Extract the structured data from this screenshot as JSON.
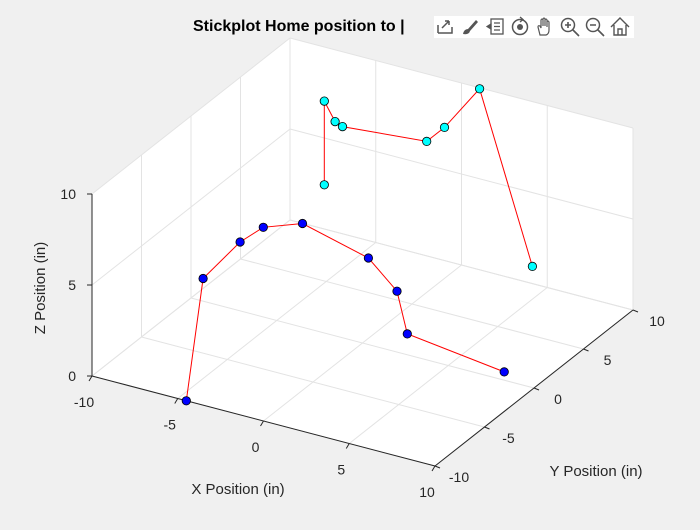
{
  "figure": {
    "background": "#f0f0f0",
    "axes_color": "#ffffff"
  },
  "toolbar": {
    "buttons": [
      {
        "name": "export-icon"
      },
      {
        "name": "brush-icon"
      },
      {
        "name": "datatip-icon"
      },
      {
        "name": "rotate-3d-icon"
      },
      {
        "name": "pan-icon"
      },
      {
        "name": "zoom-in-icon"
      },
      {
        "name": "zoom-out-icon"
      },
      {
        "name": "home-icon"
      }
    ]
  },
  "chart_data": {
    "type": "line",
    "view": "3d",
    "title": "Stickplot Home position to |",
    "xlabel": "X Position (in)",
    "ylabel": "Y Position (in)",
    "zlabel": "Z Position (in)",
    "xlim": [
      -10,
      10
    ],
    "ylim": [
      -10,
      10
    ],
    "zlim": [
      0,
      10
    ],
    "xticks": [
      "-10",
      "-5",
      "0",
      "5",
      "10"
    ],
    "yticks": [
      "-10",
      "-5",
      "0",
      "5",
      "10"
    ],
    "zticks": [
      "0",
      "5",
      "10"
    ],
    "grid": true,
    "line_color": "#ff0000",
    "marker_edge_color": "#000000",
    "series": [
      {
        "marker_color": "#0000ff",
        "points": [
          [
            -4.5,
            -10,
            0
          ],
          [
            -5.6,
            -6.4,
            4.9
          ],
          [
            -5.0,
            -3.7,
            5.9
          ],
          [
            -4.4,
            -2.4,
            6.3
          ],
          [
            -3.5,
            0.0,
            5.7
          ],
          [
            1.5,
            -2.0,
            5.9
          ],
          [
            4.9,
            -5.0,
            6.2
          ],
          [
            5.5,
            -5.0,
            4.0
          ],
          [
            7.8,
            0.8,
            0.0
          ]
        ]
      },
      {
        "marker_color": "#00ffff",
        "points": [
          [
            -5.0,
            4.8,
            5.4
          ],
          [
            -5.0,
            4.8,
            10.0
          ],
          [
            -4.6,
            5.2,
            8.8
          ],
          [
            -4.4,
            5.6,
            8.4
          ],
          [
            -0.3,
            7.0,
            8.0
          ],
          [
            -0.3,
            8.8,
            8.0
          ],
          [
            -0.1,
            12.0,
            8.8
          ],
          [
            5.0,
            8.5,
            1.8
          ]
        ]
      }
    ]
  }
}
